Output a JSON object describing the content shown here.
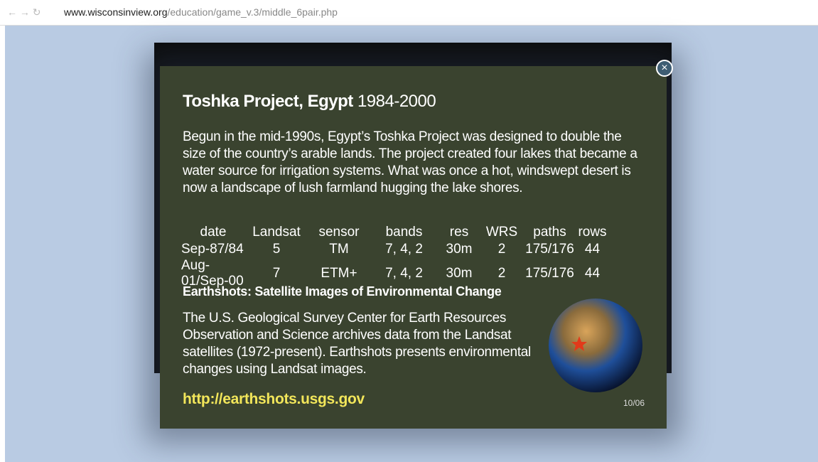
{
  "browser": {
    "url_host": "www.wisconsinview.org",
    "url_path": "/education/game_v.3/middle_6pair.php"
  },
  "modal": {
    "title": "Toshka Project, Egypt",
    "years": "1984-2000",
    "description": "Begun in the mid-1990s, Egypt’s Toshka Project was designed to double the size of the country’s arable lands. The project created four lakes that became a water source for irrigation systems. What was once a hot, windswept desert is now a landscape of lush farmland hugging the lake shores.",
    "table": {
      "columns": [
        "date",
        "Landsat",
        "sensor",
        "bands",
        "res",
        "WRS",
        "paths",
        "rows"
      ],
      "rows": [
        [
          "Sep-87/84",
          "5",
          "TM",
          "7, 4, 2",
          "30m",
          "2",
          "175/176",
          "44"
        ],
        [
          "Aug-01/Sep-00",
          "7",
          "ETM+",
          "7, 4, 2",
          "30m",
          "2",
          "175/176",
          "44"
        ]
      ]
    },
    "subheading": "Earthshots: Satellite Images of Environmental Change",
    "about": "The U.S. Geological Survey Center for Earth Resources Observation and Science archives data from the Landsat satellites (1972-present). Earthshots presents environmental changes using Landsat images.",
    "link": "http://earthshots.usgs.gov",
    "code": "10/06"
  }
}
